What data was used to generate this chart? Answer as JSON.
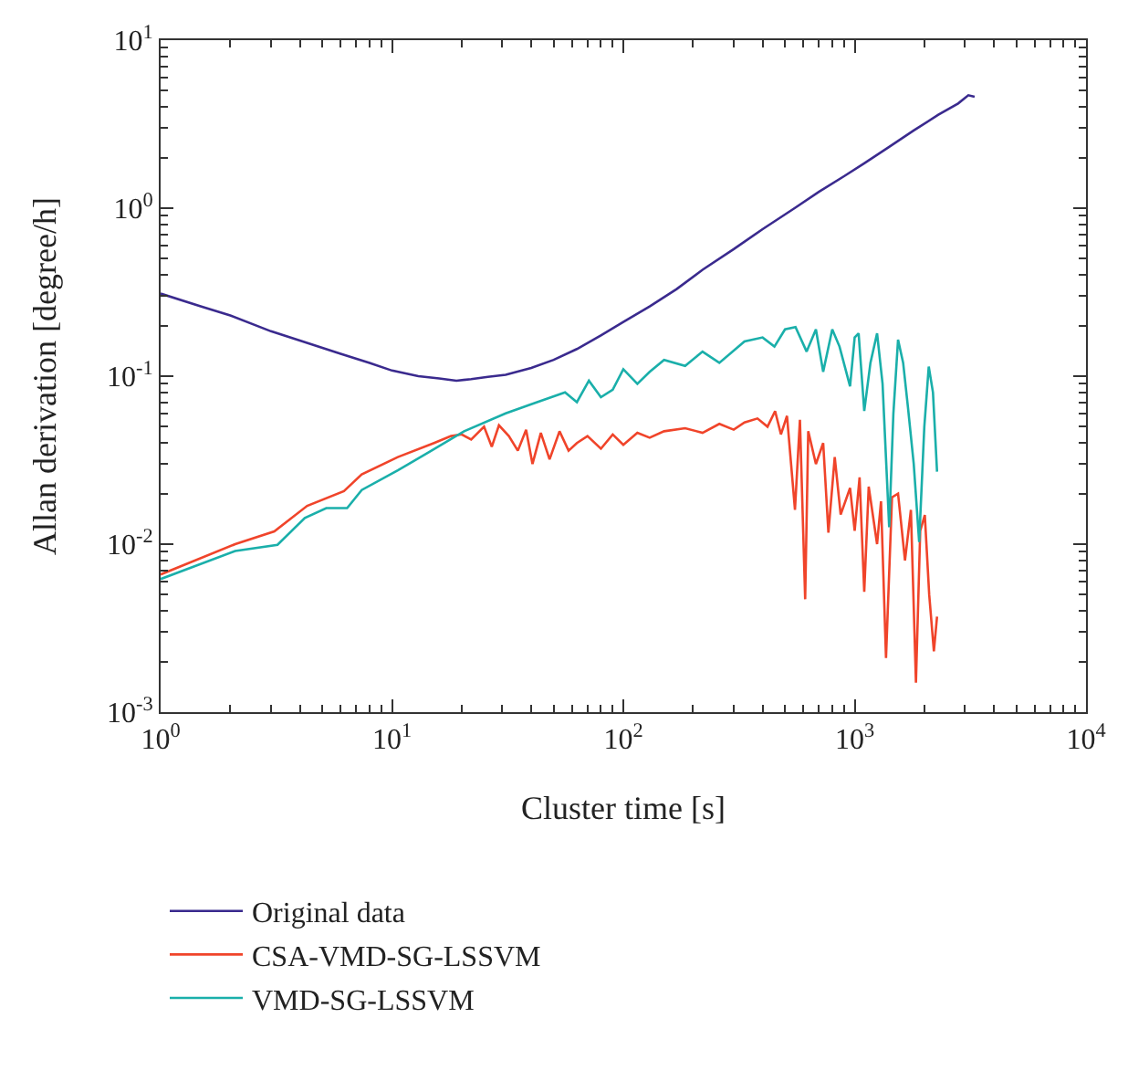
{
  "chart_data": {
    "type": "line",
    "xlabel": "Cluster time [s]",
    "ylabel": "Allan derivation [degree/h]",
    "log": "xy",
    "grid": false,
    "legend": "bottom",
    "marker": "none",
    "line_style": "solid",
    "xlim": [
      1,
      10000
    ],
    "xticks": [
      {
        "value": 1,
        "label": "10$^{0}$"
      },
      {
        "value": 10,
        "label": "10$^{1}$"
      },
      {
        "value": 100,
        "label": "10$^{2}$"
      },
      {
        "value": 1000,
        "label": "10$^{3}$"
      },
      {
        "value": 10000,
        "label": "10$^{4}$"
      }
    ],
    "ylim": [
      0.001,
      10
    ],
    "yticks": [
      {
        "value": 0.001,
        "label": "10$^{-3}$"
      },
      {
        "value": 0.01,
        "label": "10$^{-2}$"
      },
      {
        "value": 0.1,
        "label": "10$^{-1}$"
      },
      {
        "value": 1,
        "label": "10$^{0}$"
      },
      {
        "value": 10,
        "label": "10$^{1}$"
      }
    ],
    "series": [
      {
        "name": "Original data",
        "color": "#3a2a8e",
        "x": [
          1,
          1.5,
          2,
          3,
          4,
          6,
          8,
          10,
          13,
          16,
          19,
          22,
          26,
          31,
          40,
          50,
          63,
          80,
          100,
          130,
          170,
          220,
          300,
          400,
          550,
          700,
          900,
          1100,
          1400,
          1800,
          2300,
          2800,
          3100,
          3300
        ],
        "values": [
          0.31,
          0.26,
          0.23,
          0.185,
          0.163,
          0.136,
          0.12,
          0.108,
          0.1,
          0.097,
          0.094,
          0.096,
          0.099,
          0.102,
          0.112,
          0.125,
          0.145,
          0.175,
          0.21,
          0.26,
          0.33,
          0.43,
          0.57,
          0.75,
          1.0,
          1.25,
          1.55,
          1.85,
          2.3,
          2.9,
          3.6,
          4.2,
          4.7,
          4.6
        ]
      },
      {
        "name": "CSA-VMD-SG-LSSVM",
        "color": "#f0442a",
        "x": [
          1,
          2.1,
          3.1,
          4.3,
          6.2,
          7.4,
          10.6,
          15.2,
          18,
          20,
          22,
          25,
          27,
          29,
          32,
          35,
          38,
          40.5,
          44,
          48,
          53,
          58,
          63,
          70,
          80,
          90,
          100,
          115,
          130,
          150,
          185,
          220,
          260,
          300,
          334,
          380,
          420,
          453,
          480,
          510,
          552,
          580,
          611,
          630,
          680,
          731,
          770,
          820,
          870,
          955,
          1000,
          1050,
          1100,
          1150,
          1250,
          1300,
          1366,
          1450,
          1540,
          1650,
          1750,
          1840,
          1920,
          2010,
          2100,
          2200,
          2270
        ],
        "values": [
          0.0066,
          0.01,
          0.0119,
          0.0169,
          0.0207,
          0.026,
          0.033,
          0.04,
          0.044,
          0.045,
          0.042,
          0.05,
          0.038,
          0.051,
          0.044,
          0.036,
          0.048,
          0.03,
          0.046,
          0.032,
          0.047,
          0.036,
          0.04,
          0.044,
          0.037,
          0.045,
          0.039,
          0.046,
          0.043,
          0.047,
          0.049,
          0.046,
          0.052,
          0.048,
          0.053,
          0.056,
          0.05,
          0.062,
          0.045,
          0.058,
          0.016,
          0.055,
          0.0047,
          0.047,
          0.03,
          0.04,
          0.0117,
          0.033,
          0.015,
          0.0216,
          0.012,
          0.025,
          0.0052,
          0.022,
          0.01,
          0.018,
          0.0021,
          0.019,
          0.02,
          0.008,
          0.016,
          0.0015,
          0.012,
          0.0149,
          0.005,
          0.0023,
          0.0037
        ]
      },
      {
        "name": "VMD-SG-LSSVM",
        "color": "#1aafaa",
        "x": [
          1,
          2.1,
          3.2,
          4.2,
          5.2,
          6.4,
          7.4,
          10.6,
          14.3,
          20.5,
          31,
          40,
          56,
          63,
          71,
          80,
          90,
          100,
          115,
          130,
          150,
          185,
          220,
          260,
          334,
          400,
          450,
          500,
          555,
          620,
          680,
          731,
          800,
          860,
          955,
          1000,
          1040,
          1100,
          1170,
          1250,
          1320,
          1410,
          1470,
          1540,
          1620,
          1700,
          1800,
          1900,
          2000,
          2090,
          2180,
          2270
        ],
        "values": [
          0.0062,
          0.0091,
          0.0099,
          0.0143,
          0.0164,
          0.0164,
          0.021,
          0.0275,
          0.035,
          0.047,
          0.06,
          0.068,
          0.08,
          0.07,
          0.094,
          0.075,
          0.083,
          0.11,
          0.09,
          0.106,
          0.125,
          0.115,
          0.14,
          0.12,
          0.161,
          0.17,
          0.15,
          0.19,
          0.196,
          0.14,
          0.19,
          0.106,
          0.19,
          0.15,
          0.087,
          0.17,
          0.18,
          0.062,
          0.12,
          0.18,
          0.09,
          0.0126,
          0.06,
          0.165,
          0.12,
          0.065,
          0.03,
          0.0103,
          0.05,
          0.114,
          0.08,
          0.027
        ]
      }
    ]
  }
}
